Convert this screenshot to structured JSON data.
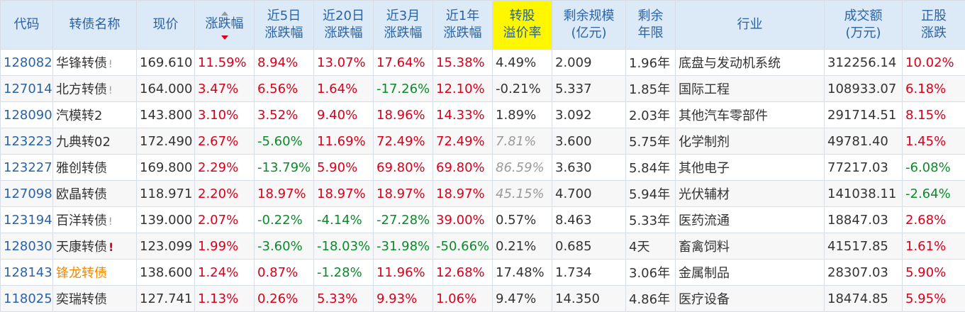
{
  "columns": [
    "代码",
    "转债名称",
    "现价",
    "涨跌幅",
    "近5日\n涨跌幅",
    "近20日\n涨跌幅",
    "近3月\n涨跌幅",
    "近1年\n涨跌幅",
    "转股\n溢价率",
    "剩余规模\n(亿元)",
    "剩余\n年限",
    "行业",
    "成交额\n(万元)",
    "正股\n涨跌"
  ],
  "colors": {
    "up": "#d9001b",
    "down": "#0a8a2a",
    "header_bg": "#dce9f7",
    "header_text": "#2a63a6",
    "highlight": "#fff700"
  },
  "rows": [
    {
      "code": "128082",
      "name": "华锋转债",
      "mark": "!",
      "price": "169.610",
      "chg": "11.59%",
      "d5": "8.94%",
      "d20": "13.07%",
      "m3": "17.64%",
      "y1": "15.38%",
      "prem": "4.49%",
      "size": "2.009",
      "years": "1.96年",
      "ind": "底盘与发动机系统",
      "amt": "312256.14",
      "stk": "10.02%"
    },
    {
      "code": "127014",
      "name": "北方转债",
      "mark": "!",
      "price": "164.000",
      "chg": "3.47%",
      "d5": "6.56%",
      "d20": "1.64%",
      "m3": "-17.26%",
      "y1": "12.10%",
      "prem": "-0.21%",
      "size": "5.337",
      "years": "1.85年",
      "ind": "国际工程",
      "amt": "108933.07",
      "stk": "6.18%"
    },
    {
      "code": "128090",
      "name": "汽模转2",
      "mark": "",
      "price": "143.800",
      "chg": "3.10%",
      "d5": "3.52%",
      "d20": "9.40%",
      "m3": "18.96%",
      "y1": "14.33%",
      "prem": "1.89%",
      "size": "3.092",
      "years": "2.03年",
      "ind": "其他汽车零部件",
      "amt": "291714.51",
      "stk": "8.15%"
    },
    {
      "code": "123223",
      "name": "九典转02",
      "mark": "",
      "price": "172.490",
      "chg": "2.67%",
      "d5": "-5.60%",
      "d20": "11.69%",
      "m3": "72.49%",
      "y1": "72.49%",
      "prem": "7.81%",
      "size": "3.600",
      "years": "5.75年",
      "ind": "化学制剂",
      "amt": "49781.40",
      "stk": "1.45%"
    },
    {
      "code": "123227",
      "name": "雅创转债",
      "mark": "",
      "price": "169.800",
      "chg": "2.29%",
      "d5": "-13.79%",
      "d20": "5.90%",
      "m3": "69.80%",
      "y1": "69.80%",
      "prem": "86.59%",
      "size": "3.630",
      "years": "5.84年",
      "ind": "其他电子",
      "amt": "77217.03",
      "stk": "-6.08%"
    },
    {
      "code": "127098",
      "name": "欧晶转债",
      "mark": "",
      "price": "118.971",
      "chg": "2.20%",
      "d5": "18.97%",
      "d20": "18.97%",
      "m3": "18.97%",
      "y1": "18.97%",
      "prem": "45.15%",
      "size": "4.700",
      "years": "5.94年",
      "ind": "光伏辅材",
      "amt": "141038.11",
      "stk": "-2.64%"
    },
    {
      "code": "123194",
      "name": "百洋转债",
      "mark": "!",
      "price": "139.000",
      "chg": "2.07%",
      "d5": "-0.22%",
      "d20": "-4.14%",
      "m3": "-27.28%",
      "y1": "39.00%",
      "prem": "0.57%",
      "size": "8.463",
      "years": "5.33年",
      "ind": "医药流通",
      "amt": "18847.03",
      "stk": "2.68%"
    },
    {
      "code": "128030",
      "name": "天康转债",
      "mark": "!",
      "price": "123.099",
      "chg": "1.99%",
      "d5": "-3.60%",
      "d20": "-18.03%",
      "m3": "-31.98%",
      "y1": "-50.66%",
      "prem": "0.21%",
      "size": "0.685",
      "years": "4天",
      "ind": "畜禽饲料",
      "amt": "41517.85",
      "stk": "1.61%"
    },
    {
      "code": "128143",
      "name": "锋龙转债",
      "mark": "",
      "price": "138.600",
      "chg": "1.24%",
      "d5": "0.87%",
      "d20": "-1.28%",
      "m3": "11.96%",
      "y1": "12.68%",
      "prem": "17.48%",
      "size": "1.734",
      "years": "3.06年",
      "ind": "金属制品",
      "amt": "28307.03",
      "stk": "5.90%"
    },
    {
      "code": "118025",
      "name": "奕瑞转债",
      "mark": "",
      "price": "127.741",
      "chg": "1.13%",
      "d5": "0.26%",
      "d20": "5.33%",
      "m3": "9.93%",
      "y1": "1.06%",
      "prem": "9.47%",
      "size": "14.350",
      "years": "4.86年",
      "ind": "医疗设备",
      "amt": "18474.85",
      "stk": "5.95%"
    }
  ]
}
